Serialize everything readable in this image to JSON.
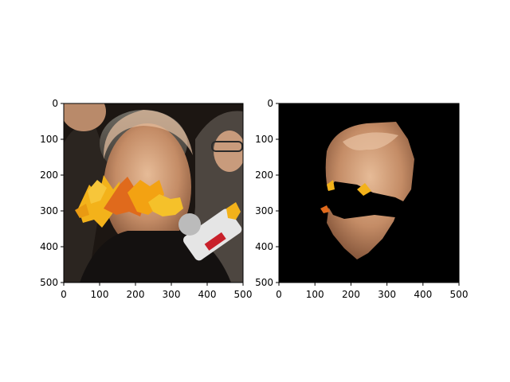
{
  "chart_data": [
    {
      "type": "image",
      "title": "",
      "xlabel": "",
      "ylabel": "",
      "xlim": [
        0,
        500
      ],
      "ylim": [
        500,
        0
      ],
      "xticks": [
        0,
        100,
        200,
        300,
        400,
        500
      ],
      "yticks": [
        0,
        100,
        200,
        300,
        400,
        500
      ],
      "content": "photo of a man's face partially covered by autumn leaves",
      "grid": false
    },
    {
      "type": "image",
      "title": "",
      "xlabel": "",
      "ylabel": "",
      "xlim": [
        0,
        500
      ],
      "ylim": [
        500,
        0
      ],
      "xticks": [
        0,
        100,
        200,
        300,
        400,
        500
      ],
      "yticks": [
        0,
        100,
        200,
        300,
        400,
        500
      ],
      "content": "segmented face region on black background with occluded band removed",
      "grid": false
    }
  ],
  "colors": {
    "skin": "#d9a882",
    "skin_shadow": "#a06a4a",
    "background_dark": "#1c1612",
    "leaf_yellow": "#f3b21a",
    "leaf_orange": "#e06a1c",
    "mask_black": "#000000"
  }
}
